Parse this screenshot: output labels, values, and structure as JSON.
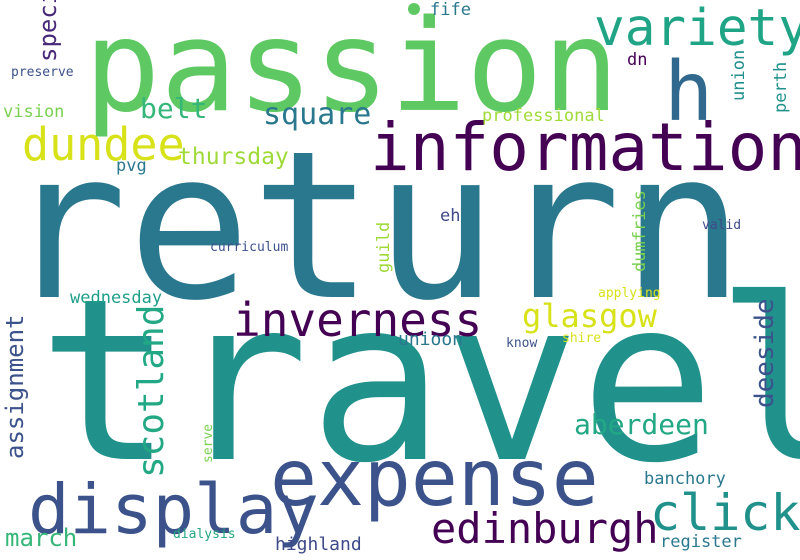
{
  "word_cloud": {
    "words": [
      {
        "text": "return",
        "color": "#2a788e"
      },
      {
        "text": "travel",
        "color": "#21918c"
      },
      {
        "text": "passion",
        "color": "#5ec962"
      },
      {
        "text": "information",
        "color": "#440154"
      },
      {
        "text": "expense",
        "color": "#3b528b"
      },
      {
        "text": "display",
        "color": "#3b528b"
      },
      {
        "text": "h",
        "color": "#31688e"
      },
      {
        "text": "variety",
        "color": "#20a486"
      },
      {
        "text": "dundee",
        "color": "#d8e219"
      },
      {
        "text": "inverness",
        "color": "#440154"
      },
      {
        "text": "edinburgh",
        "color": "#440154"
      },
      {
        "text": "click",
        "color": "#21918c"
      },
      {
        "text": "glasgow",
        "color": "#d8e219"
      },
      {
        "text": "aberdeen",
        "color": "#22a884"
      },
      {
        "text": "scotland",
        "color": "#22a884"
      },
      {
        "text": "assignment",
        "color": "#3b528b"
      },
      {
        "text": "deeside",
        "color": "#3b528b"
      },
      {
        "text": "belt",
        "color": "#35b779"
      },
      {
        "text": "square",
        "color": "#2a788e"
      },
      {
        "text": "thursday",
        "color": "#a0da39"
      },
      {
        "text": "fife",
        "color": "#2a788e"
      },
      {
        "text": "specialism",
        "color": "#482878"
      },
      {
        "text": "professional",
        "color": "#a0da39"
      },
      {
        "text": "march",
        "color": "#35b779"
      },
      {
        "text": "highland",
        "color": "#3e4989"
      },
      {
        "text": "banchory",
        "color": "#2a788e"
      },
      {
        "text": "register",
        "color": "#2a788e"
      },
      {
        "text": "wednesday",
        "color": "#1f9e89"
      },
      {
        "text": "unioon",
        "color": "#2a788e"
      },
      {
        "text": "dumfries",
        "color": "#7ad151"
      },
      {
        "text": "perth",
        "color": "#21918c"
      },
      {
        "text": "union",
        "color": "#21918c"
      },
      {
        "text": "dn",
        "color": "#440154"
      },
      {
        "text": "eh",
        "color": "#3e4989"
      },
      {
        "text": "pvg",
        "color": "#2a788e"
      },
      {
        "text": "vision",
        "color": "#7ad151"
      },
      {
        "text": "preserve",
        "color": "#3b528b"
      },
      {
        "text": "guild",
        "color": "#a0da39"
      },
      {
        "text": "curriculum",
        "color": "#3b528b"
      },
      {
        "text": "valid",
        "color": "#3e4989"
      },
      {
        "text": "applying",
        "color": "#d8e219"
      },
      {
        "text": "shire",
        "color": "#d8e219"
      },
      {
        "text": "know",
        "color": "#3b528b"
      },
      {
        "text": "serve",
        "color": "#7ad151"
      },
      {
        "text": "dialysis",
        "color": "#22a884"
      }
    ],
    "dot_color": "#5ec962"
  }
}
